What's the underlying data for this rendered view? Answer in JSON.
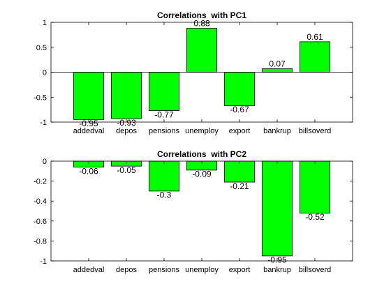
{
  "chart_data": [
    {
      "type": "bar",
      "title": "Correlations  with PC1",
      "categories": [
        "addedval",
        "depos",
        "pensions",
        "unemploy",
        "export",
        "bankrup",
        "billsoverd"
      ],
      "values": [
        -0.95,
        -0.93,
        -0.77,
        0.88,
        -0.67,
        0.07,
        0.61
      ],
      "data_labels": [
        "-0.95",
        "-0.93",
        "-0.77",
        "0.88",
        "-0.67",
        "0.07",
        "0.61"
      ],
      "ylim": [
        -1,
        1
      ],
      "yticks": [
        -1,
        -0.5,
        0,
        0.5,
        1
      ],
      "ytick_labels": [
        "-1",
        "-0.5",
        "0",
        "0.5",
        "1"
      ],
      "bar_color": "#00ff00",
      "grid": false,
      "xlabel": "",
      "ylabel": ""
    },
    {
      "type": "bar",
      "title": "Correlations  with PC2",
      "categories": [
        "addedval",
        "depos",
        "pensions",
        "unemploy",
        "export",
        "bankrup",
        "billsoverd"
      ],
      "values": [
        -0.06,
        -0.05,
        -0.3,
        -0.09,
        -0.21,
        -0.95,
        -0.52
      ],
      "data_labels": [
        "-0.06",
        "-0.05",
        "-0.3",
        "-0.09",
        "-0.21",
        "-0.95",
        "-0.52"
      ],
      "ylim": [
        -1,
        0
      ],
      "yticks": [
        -1,
        -0.8,
        -0.6,
        -0.4,
        -0.2,
        0
      ],
      "ytick_labels": [
        "-1",
        "-0.8",
        "-0.6",
        "-0.4",
        "-0.2",
        "0"
      ],
      "bar_color": "#00ff00",
      "grid": false,
      "xlabel": "",
      "ylabel": ""
    }
  ]
}
